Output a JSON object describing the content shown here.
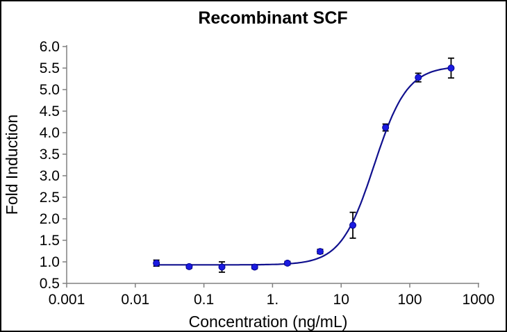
{
  "chart_data": {
    "type": "scatter",
    "subtype": "dose-response-with-fit-curve",
    "title": "Recombinant SCF",
    "xlabel": "Concentration (ng/mL)",
    "ylabel": "Fold Induction",
    "x_scale": "log10",
    "xlim": [
      0.001,
      1000
    ],
    "ylim": [
      0.5,
      6.0
    ],
    "grid": false,
    "legend": null,
    "x_tick_values": [
      0.001,
      0.01,
      0.1,
      1,
      10,
      100,
      1000
    ],
    "x_tick_labels": [
      "0.001",
      "0.01",
      "0.1",
      "1.",
      "10",
      "100",
      "1000"
    ],
    "y_tick_values": [
      0.5,
      1.0,
      1.5,
      2.0,
      2.5,
      3.0,
      3.5,
      4.0,
      4.5,
      5.0,
      5.5,
      6.0
    ],
    "y_tick_labels": [
      "0.5",
      "1.0",
      "1.5",
      "2.0",
      "2.5",
      "3.0",
      "3.5",
      "4.0",
      "4.5",
      "5.0",
      "5.5",
      "6.0"
    ],
    "points": [
      {
        "x": 0.0203,
        "y": 0.97,
        "err": 0.07
      },
      {
        "x": 0.061,
        "y": 0.89,
        "err": 0.04
      },
      {
        "x": 0.183,
        "y": 0.88,
        "err": 0.12
      },
      {
        "x": 0.549,
        "y": 0.88,
        "err": 0.04
      },
      {
        "x": 1.65,
        "y": 0.97,
        "err": 0.04
      },
      {
        "x": 4.94,
        "y": 1.24,
        "err": 0.05
      },
      {
        "x": 14.8,
        "y": 1.85,
        "err": 0.3
      },
      {
        "x": 44.4,
        "y": 4.12,
        "err": 0.08
      },
      {
        "x": 133,
        "y": 5.28,
        "err": 0.1
      },
      {
        "x": 400,
        "y": 5.5,
        "err": 0.23
      }
    ],
    "fit": {
      "model": "4PL",
      "bottom": 0.93,
      "top": 5.55,
      "log_ec50": 1.48,
      "hill": 1.8
    },
    "colors": {
      "curve": "#10108e",
      "marker": "#1b1be0",
      "marker_edge": "#000090",
      "error": "#000000",
      "axis": "#808080",
      "text": "#000000",
      "background": "#ffffff",
      "border": "#000000"
    }
  }
}
